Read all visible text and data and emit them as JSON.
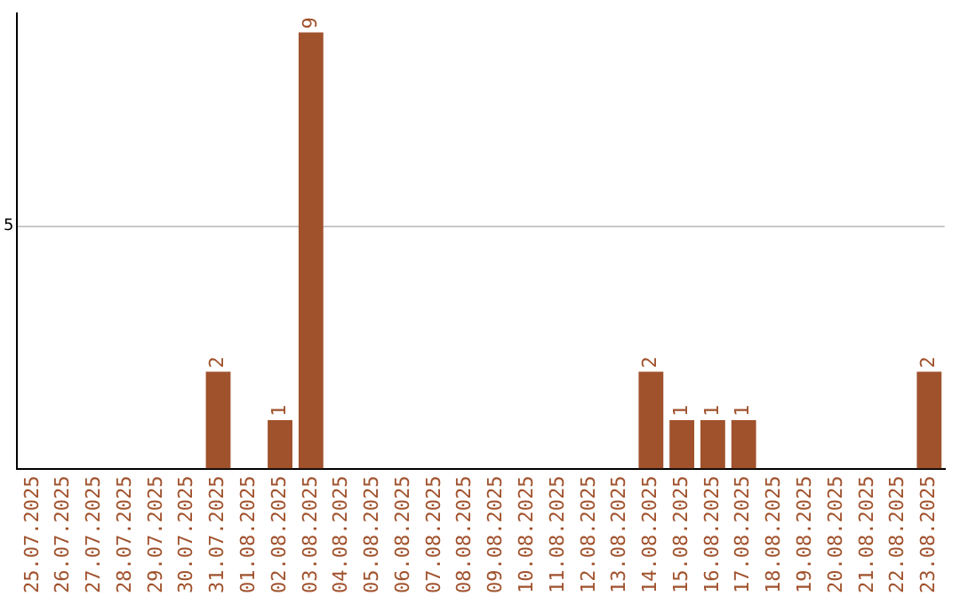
{
  "chart_data": {
    "type": "bar",
    "categories": [
      "25.07.2025",
      "26.07.2025",
      "27.07.2025",
      "28.07.2025",
      "29.07.2025",
      "30.07.2025",
      "31.07.2025",
      "01.08.2025",
      "02.08.2025",
      "03.08.2025",
      "04.08.2025",
      "05.08.2025",
      "06.08.2025",
      "07.08.2025",
      "08.08.2025",
      "09.08.2025",
      "10.08.2025",
      "11.08.2025",
      "12.08.2025",
      "13.08.2025",
      "14.08.2025",
      "15.08.2025",
      "16.08.2025",
      "17.08.2025",
      "18.08.2025",
      "19.08.2025",
      "20.08.2025",
      "21.08.2025",
      "22.08.2025",
      "23.08.2025"
    ],
    "values": [
      0,
      0,
      0,
      0,
      0,
      0,
      2,
      0,
      1,
      9,
      0,
      0,
      0,
      0,
      0,
      0,
      0,
      0,
      0,
      0,
      2,
      1,
      1,
      1,
      0,
      0,
      0,
      0,
      0,
      2
    ],
    "value_labels": [
      null,
      null,
      null,
      null,
      null,
      null,
      "2",
      null,
      "1",
      "9",
      null,
      null,
      null,
      null,
      null,
      null,
      null,
      null,
      null,
      null,
      "2",
      "1",
      "1",
      "1",
      null,
      null,
      null,
      null,
      null,
      "2"
    ],
    "color": "#a0522d",
    "ylim": [
      0,
      9.4
    ],
    "yticks": [
      5
    ],
    "grid": "y",
    "legend": false
  }
}
